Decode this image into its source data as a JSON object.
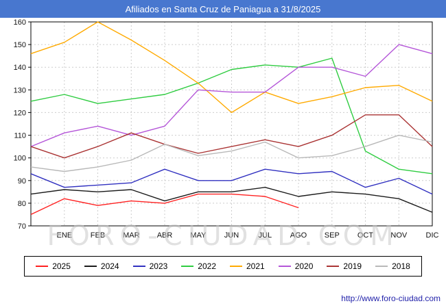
{
  "header": {
    "title": "Afiliados en Santa Cruz de Paniagua a 31/8/2025",
    "background_color": "#4877cf"
  },
  "watermark": "FORO-CIUDAD.COM",
  "footer": {
    "url": "http://www.foro-ciudad.com"
  },
  "chart_data": {
    "type": "line",
    "title": "Afiliados en Santa Cruz de Paniagua a 31/8/2025",
    "x_tick_labels": [
      "ENE",
      "FEB",
      "MAR",
      "ABR",
      "MAY",
      "JUN",
      "JUL",
      "AGO",
      "SEP",
      "OCT",
      "NOV",
      "DIC"
    ],
    "ylim": [
      70,
      160
    ],
    "y_step": 10,
    "grid": true,
    "legend_position": "bottom",
    "series": [
      {
        "name": "2025",
        "color": "#ff2020",
        "values": [
          75,
          82,
          79,
          81,
          80,
          84,
          84,
          83,
          78,
          null,
          null,
          null,
          null
        ]
      },
      {
        "name": "2024",
        "color": "#1a1a1a",
        "values": [
          84,
          86,
          85,
          86,
          81,
          85,
          85,
          87,
          83,
          85,
          84,
          82,
          76
        ]
      },
      {
        "name": "2023",
        "color": "#3030c0",
        "values": [
          93,
          87,
          88,
          89,
          95,
          90,
          90,
          95,
          93,
          94,
          87,
          91,
          84
        ]
      },
      {
        "name": "2022",
        "color": "#2ecc40",
        "values": [
          125,
          128,
          124,
          126,
          128,
          133,
          139,
          141,
          140,
          144,
          103,
          95,
          93
        ]
      },
      {
        "name": "2021",
        "color": "#ffaa00",
        "values": [
          146,
          151,
          160,
          152,
          143,
          133,
          120,
          129,
          124,
          127,
          131,
          132,
          125
        ]
      },
      {
        "name": "2020",
        "color": "#b455d8",
        "values": [
          105,
          111,
          114,
          110,
          114,
          130,
          129,
          129,
          140,
          140,
          136,
          150,
          146
        ]
      },
      {
        "name": "2019",
        "color": "#aa3333",
        "values": [
          105,
          100,
          105,
          111,
          106,
          102,
          105,
          108,
          105,
          110,
          119,
          119,
          105
        ]
      },
      {
        "name": "2018",
        "color": "#b8b8b8",
        "values": [
          96,
          94,
          96,
          99,
          106,
          101,
          103,
          107,
          100,
          101,
          105,
          110,
          107
        ]
      }
    ]
  }
}
